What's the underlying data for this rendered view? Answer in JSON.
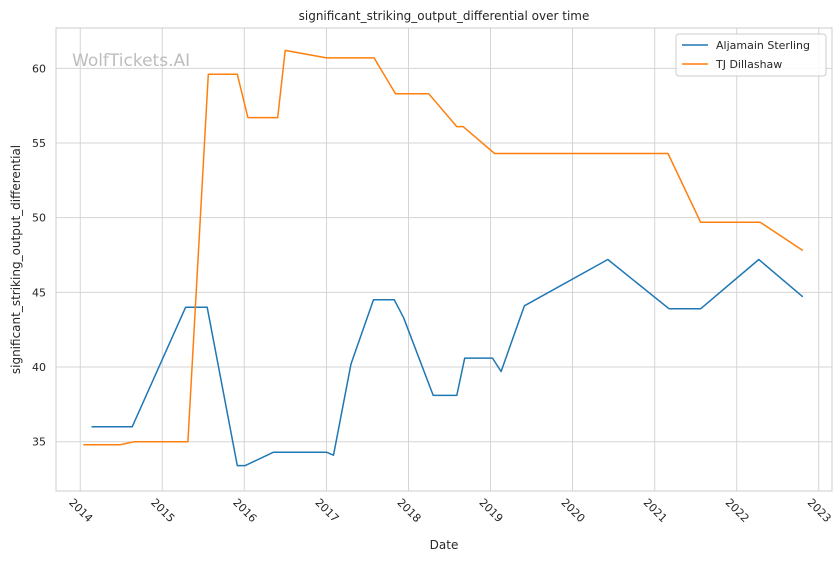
{
  "chart_data": {
    "type": "line",
    "title": "significant_striking_output_differential over time",
    "xlabel": "Date",
    "ylabel": "significant_striking_output_differential",
    "watermark": "WolfTickets.AI",
    "x_ticks": [
      "2014",
      "2015",
      "2016",
      "2017",
      "2018",
      "2019",
      "2020",
      "2021",
      "2022",
      "2023"
    ],
    "y_ticks": [
      35,
      40,
      45,
      50,
      55,
      60
    ],
    "xlim": [
      "2013-09-15",
      "2023-03-01"
    ],
    "ylim": [
      31.7,
      62.7
    ],
    "grid": true,
    "legend_position": "top-right",
    "series": [
      {
        "name": "Aljamain Sterling",
        "color": "#1f77b4",
        "points": [
          [
            "2014-02-20",
            36.0
          ],
          [
            "2014-08-20",
            36.0
          ],
          [
            "2015-04-15",
            44.0
          ],
          [
            "2015-07-20",
            44.0
          ],
          [
            "2015-12-01",
            33.4
          ],
          [
            "2016-01-05",
            33.4
          ],
          [
            "2016-05-10",
            34.3
          ],
          [
            "2017-01-01",
            34.3
          ],
          [
            "2017-02-01",
            34.1
          ],
          [
            "2017-04-20",
            40.2
          ],
          [
            "2017-07-29",
            44.5
          ],
          [
            "2017-10-30",
            44.5
          ],
          [
            "2017-12-10",
            43.3
          ],
          [
            "2018-04-21",
            38.1
          ],
          [
            "2018-08-04",
            38.1
          ],
          [
            "2018-09-08",
            40.6
          ],
          [
            "2019-01-10",
            40.6
          ],
          [
            "2019-02-17",
            39.7
          ],
          [
            "2019-06-01",
            44.1
          ],
          [
            "2020-06-06",
            47.2
          ],
          [
            "2021-03-06",
            43.9
          ],
          [
            "2021-07-24",
            43.9
          ],
          [
            "2022-04-09",
            47.2
          ],
          [
            "2022-10-22",
            44.7
          ]
        ]
      },
      {
        "name": "TJ Dillashaw",
        "color": "#ff7f0e",
        "points": [
          [
            "2014-01-15",
            34.8
          ],
          [
            "2014-06-28",
            34.8
          ],
          [
            "2014-08-30",
            35.0
          ],
          [
            "2015-04-25",
            35.0
          ],
          [
            "2015-07-25",
            59.6
          ],
          [
            "2015-12-01",
            59.6
          ],
          [
            "2016-01-17",
            56.7
          ],
          [
            "2016-05-29",
            56.7
          ],
          [
            "2016-07-01",
            61.2
          ],
          [
            "2017-01-01",
            60.7
          ],
          [
            "2017-08-01",
            60.7
          ],
          [
            "2017-11-04",
            58.3
          ],
          [
            "2018-04-01",
            58.3
          ],
          [
            "2018-08-04",
            56.1
          ],
          [
            "2018-09-01",
            56.1
          ],
          [
            "2019-01-19",
            54.3
          ],
          [
            "2021-03-01",
            54.3
          ],
          [
            "2021-07-24",
            49.7
          ],
          [
            "2022-02-01",
            49.7
          ],
          [
            "2022-04-15",
            49.7
          ],
          [
            "2022-10-22",
            47.8
          ]
        ]
      }
    ]
  }
}
